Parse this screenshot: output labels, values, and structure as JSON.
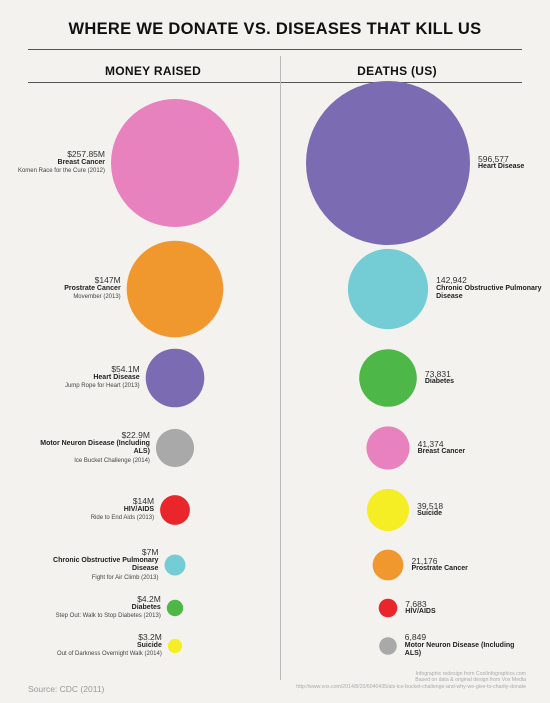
{
  "title": "WHERE WE DONATE VS. DISEASES THAT KILL US",
  "chart_data": [
    {
      "type": "bubble",
      "title": "MONEY RAISED",
      "items": [
        {
          "value_label": "$257.85M",
          "value": 257.85,
          "unit": "M USD",
          "name": "Breast Cancer",
          "sub": "Komen Race for the Cure (2012)",
          "color": "#e882be"
        },
        {
          "value_label": "$147M",
          "value": 147,
          "unit": "M USD",
          "name": "Prostrate Cancer",
          "sub": "Movember (2013)",
          "color": "#f0982e"
        },
        {
          "value_label": "$54.1M",
          "value": 54.1,
          "unit": "M USD",
          "name": "Heart Disease",
          "sub": "Jump Rope for Heart (2013)",
          "color": "#7b6bb3"
        },
        {
          "value_label": "$22.9M",
          "value": 22.9,
          "unit": "M USD",
          "name": "Motor Neuron Disease (Including ALS)",
          "sub": "Ice Bucket Challenge (2014)",
          "color": "#a9a9a9"
        },
        {
          "value_label": "$14M",
          "value": 14,
          "unit": "M USD",
          "name": "HIV/AIDS",
          "sub": "Ride to End Aids (2013)",
          "color": "#e8262c"
        },
        {
          "value_label": "$7M",
          "value": 7,
          "unit": "M USD",
          "name": "Chronic Obstructive Pulmonary Disease",
          "sub": "Fight for Air Climb (2013)",
          "color": "#74cdd4"
        },
        {
          "value_label": "$4.2M",
          "value": 4.2,
          "unit": "M USD",
          "name": "Diabetes",
          "sub": "Step Out: Walk to Stop Diabetes (2013)",
          "color": "#4db748"
        },
        {
          "value_label": "$3.2M",
          "value": 3.2,
          "unit": "M USD",
          "name": "Suicide",
          "sub": "Out of Darkness Overnight Walk (2014)",
          "color": "#f5ee25"
        }
      ]
    },
    {
      "type": "bubble",
      "title": "DEATHS (US)",
      "items": [
        {
          "value_label": "596,577",
          "value": 596577,
          "name": "Heart Disease",
          "color": "#7b6bb3"
        },
        {
          "value_label": "142,942",
          "value": 142942,
          "name": "Chronic Obstructive Pulmonary Disease",
          "color": "#74cdd4"
        },
        {
          "value_label": "73,831",
          "value": 73831,
          "name": "Diabetes",
          "color": "#4db748"
        },
        {
          "value_label": "41,374",
          "value": 41374,
          "name": "Breast Cancer",
          "color": "#e882be"
        },
        {
          "value_label": "39,518",
          "value": 39518,
          "name": "Suicide",
          "color": "#f5ee25"
        },
        {
          "value_label": "21,176",
          "value": 21176,
          "name": "Prostrate Cancer",
          "color": "#f0982e"
        },
        {
          "value_label": "7,683",
          "value": 7683,
          "name": "HIV/AIDS",
          "color": "#e8262c"
        },
        {
          "value_label": "6,849",
          "value": 6849,
          "name": "Motor Neuron Disease (Including ALS)",
          "color": "#a9a9a9"
        }
      ]
    }
  ],
  "footer": {
    "source": "Source: CDC (2011)",
    "credit_1": "Infographic redesign from CoolInfographics.com",
    "credit_2": "Based on data & original design from Vox Media",
    "credit_3": "http://www.vox.com/2014/8/20/6040435/als-ice-bucket-challenge-and-why-we-give-to-charity-donate"
  }
}
